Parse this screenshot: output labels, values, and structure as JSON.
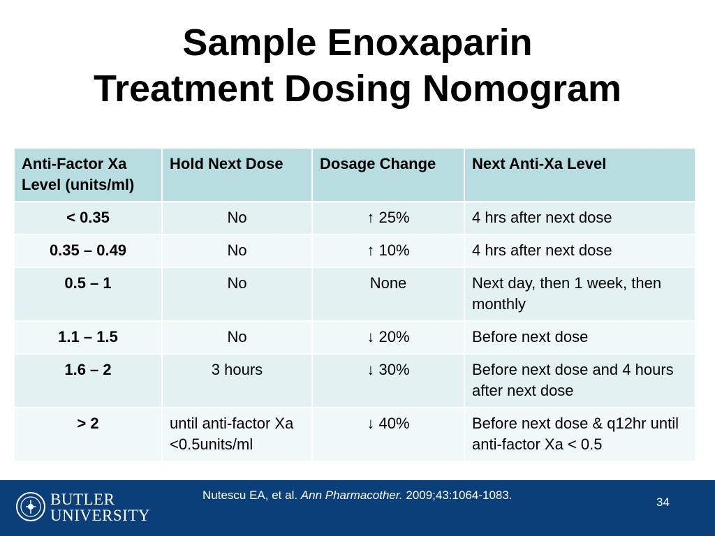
{
  "title": {
    "line1": "Sample Enoxaparin",
    "line2": "Treatment Dosing Nomogram"
  },
  "table": {
    "headers": {
      "level_line1": "Anti-Factor Xa",
      "level_line2": "Level (units/ml)",
      "hold": "Hold Next Dose",
      "change": "Dosage Change",
      "next": "Next  Anti-Xa Level"
    },
    "rows": [
      {
        "level": "< 0.35",
        "hold": "No",
        "change": "↑ 25%",
        "next": "4 hrs after next dose"
      },
      {
        "level": "0.35 – 0.49",
        "hold": "No",
        "change": "↑ 10%",
        "next": "4 hrs after next dose"
      },
      {
        "level": "0.5 – 1",
        "hold": "No",
        "change": "None",
        "next": "Next day, then 1 week, then monthly"
      },
      {
        "level": "1.1 – 1.5",
        "hold": "No",
        "change": "↓ 20%",
        "next": "Before next dose"
      },
      {
        "level": "1.6 – 2",
        "hold": "3 hours",
        "change": "↓ 30%",
        "next": "Before next dose and 4 hours after next dose"
      },
      {
        "level": "> 2",
        "hold": "until anti-factor Xa <0.5units/ml",
        "change": "↓ 40%",
        "next": "Before next dose & q12hr until anti-factor Xa < 0.5"
      }
    ]
  },
  "footer": {
    "brand_line1": "BUTLER",
    "brand_line2": "UNIVERSITY",
    "citation_authors": "Nutescu EA, et al. ",
    "citation_journal": "Ann Pharmacother.",
    "citation_details": " 2009;43:1064-1083.",
    "page_number": "34",
    "background_color": "#0a3f7a"
  }
}
